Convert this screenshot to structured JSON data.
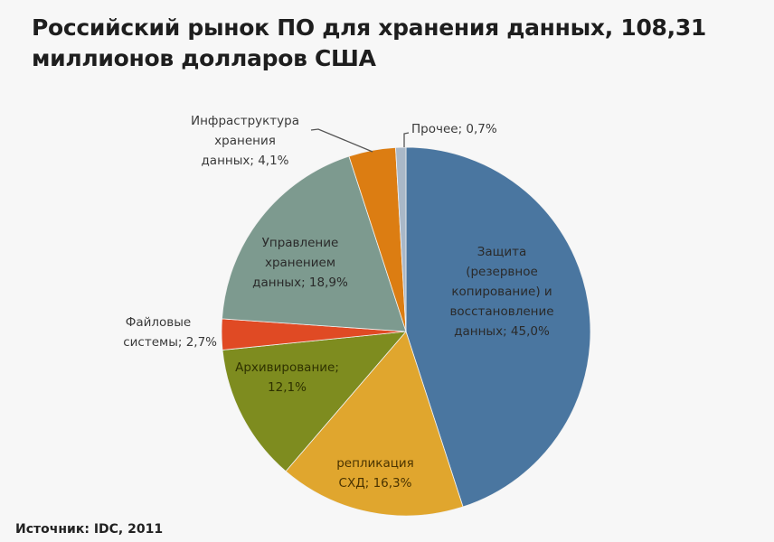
{
  "title": {
    "line1": "Российский рынок ПО для хранения данных, 108,31",
    "line2": "миллионов долларов США"
  },
  "source": "Источник: IDC, 2011",
  "labels": {
    "zashchita": [
      "Защита",
      "(резервное",
      "копирование) и",
      "восстановление",
      "данных; 45,0%"
    ],
    "replikatsiya": [
      "репликация",
      "СХД; 16,3%"
    ],
    "arkhiv": [
      "Архивирование;",
      "12,1%"
    ],
    "fajl": [
      "Файловые",
      "системы; 2,7%"
    ],
    "upravlenie": [
      "Управление",
      "хранением",
      "данных; 18,9%"
    ],
    "infra": [
      "Инфраструктура",
      "хранения",
      "данных; 4,1%"
    ],
    "prochee": [
      "Прочее; 0,7%"
    ]
  },
  "chart_data": {
    "type": "pie",
    "title": "Российский рынок ПО для хранения данных, 108,31 миллионов долларов США",
    "start_angle": "12 o'clock, clockwise",
    "categories": [
      "Защита (резервное копирование) и восстановление данных",
      "репликация СХД",
      "Архивирование",
      "Файловые системы",
      "Управление хранением данных",
      "Инфраструктура хранения данных",
      "Прочее"
    ],
    "values": [
      45.0,
      16.3,
      12.1,
      2.7,
      18.9,
      4.1,
      0.7
    ],
    "unit": "%",
    "colors": [
      "#4a76a0",
      "#e0a62e",
      "#7e8c1f",
      "#e04a24",
      "#7d9a8f",
      "#dc7d12",
      "#a9b8c8"
    ],
    "source": "Источник: IDC, 2011",
    "legend": "none (data labels)"
  }
}
